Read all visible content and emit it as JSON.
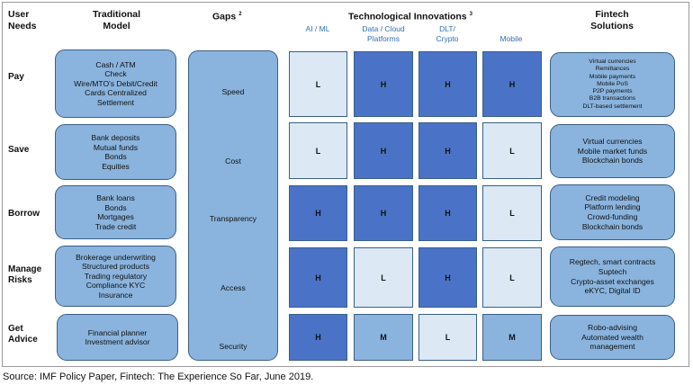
{
  "headers": {
    "user_needs": [
      "User",
      "Needs"
    ],
    "traditional_model": [
      "Traditional",
      "Model"
    ],
    "gaps": "Gaps",
    "gaps_sup": "2",
    "tech_innovations": "Technological Innovations",
    "tech_sup": "3",
    "fintech_solutions": [
      "Fintech",
      "Solutions"
    ]
  },
  "tech_columns": [
    [
      "AI / ML"
    ],
    [
      "Data / Cloud",
      "Platforms"
    ],
    [
      "DLT/",
      "Crypto"
    ],
    [
      "Mobile"
    ]
  ],
  "rows": [
    {
      "need": [
        "Pay"
      ],
      "traditional": [
        "Cash / ATM",
        "Check",
        "Wire/MTO's Debit/Credit",
        "Cards Centralized",
        "Settlement"
      ],
      "ratings": [
        "L",
        "H",
        "H",
        "H"
      ],
      "fintech": [
        "Virtual currencies",
        "Remittances",
        "Mobile payments",
        "Mobile PoS",
        "P2P payments",
        "B2B transactions",
        "DLT-based settlement"
      ]
    },
    {
      "need": [
        "Save"
      ],
      "traditional": [
        "Bank deposits",
        "Mutual funds",
        "Bonds",
        "Equities"
      ],
      "ratings": [
        "L",
        "H",
        "H",
        "L"
      ],
      "fintech": [
        "Virtual currencies",
        "Mobile market funds",
        "Blockchain bonds"
      ]
    },
    {
      "need": [
        "Borrow"
      ],
      "traditional": [
        "Bank loans",
        "Bonds",
        "Mortgages",
        "Trade credit"
      ],
      "ratings": [
        "H",
        "H",
        "H",
        "L"
      ],
      "fintech": [
        "Credit modeling",
        "Platform lending",
        "Crowd-funding",
        "Blockchain bonds"
      ]
    },
    {
      "need": [
        "Manage",
        "Risks"
      ],
      "traditional": [
        "Brokerage underwriting",
        "Structured products",
        "Trading regulatory",
        "Compliance KYC",
        "Insurance"
      ],
      "ratings": [
        "H",
        "L",
        "H",
        "L"
      ],
      "fintech": [
        "Regtech, smart contracts",
        "Suptech",
        "Crypto-asset exchanges",
        "eKYC, Digital ID"
      ]
    },
    {
      "need": [
        "Get",
        "Advice"
      ],
      "traditional": [
        "Financial planner",
        "Investment advisor"
      ],
      "ratings": [
        "H",
        "M",
        "L",
        "M"
      ],
      "fintech": [
        "Robo-advising",
        "Automated wealth",
        "management"
      ]
    }
  ],
  "gaps": [
    "Speed",
    "Cost",
    "Transparency",
    "Access",
    "Security"
  ],
  "source": "Source: IMF Policy Paper, Fintech: The Experience So Far, June 2019."
}
